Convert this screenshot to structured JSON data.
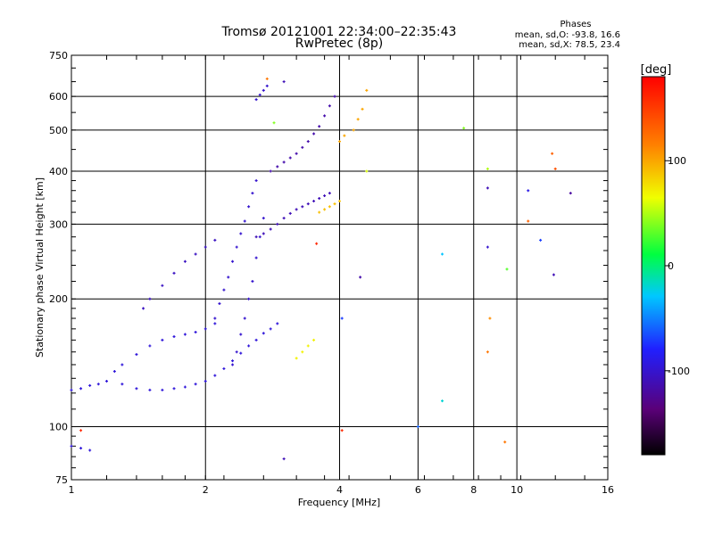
{
  "chart_data": {
    "type": "scatter",
    "title": "Tromsø 20121001 22:34:00–22:35:43",
    "subtitle": "RwPretec (8p)",
    "phases": {
      "title": "Phases",
      "line_o": "mean, sd,O: -93.8, 16.6",
      "line_x": "mean, sd,X:  78.5, 23.4"
    },
    "xlabel": "Frequency [MHz]",
    "ylabel": "Stationary phase Virtual Height [km]",
    "x_scale": "log",
    "y_scale": "log",
    "xlim": [
      1,
      16
    ],
    "ylim": [
      75,
      750
    ],
    "xticks": [
      1,
      2,
      4,
      6,
      8,
      10,
      16
    ],
    "yticks": [
      75,
      100,
      200,
      300,
      400,
      500,
      600,
      750
    ],
    "x_grid": [
      2,
      4,
      6,
      8,
      10
    ],
    "y_grid": [
      100,
      200,
      300,
      400,
      500,
      600
    ],
    "grid": true,
    "colorbar": {
      "unit": "[deg]",
      "range": [
        -180,
        180
      ],
      "ticks": [
        100,
        0,
        -100
      ],
      "colormap": "rainbow"
    },
    "traces": [
      {
        "name": "",
        "phase": -95,
        "x": [
          1.0,
          1.05,
          1.1,
          1.15,
          1.2,
          1.3,
          1.4,
          1.5,
          1.6,
          1.7,
          1.8,
          1.9,
          2.0,
          2.1,
          2.2,
          2.3,
          2.4,
          2.5,
          2.6,
          2.7,
          2.8,
          2.9
        ],
        "y": [
          122,
          123,
          125,
          126,
          128,
          126,
          123,
          122,
          122,
          123,
          124,
          126,
          128,
          132,
          137,
          143,
          149,
          155,
          160,
          166,
          170,
          175
        ]
      },
      {
        "name": "",
        "phase": -100,
        "x": [
          2.1,
          2.15,
          2.2,
          2.25,
          2.3,
          2.35,
          2.4,
          2.45,
          2.5,
          2.55,
          2.6
        ],
        "y": [
          180,
          195,
          210,
          225,
          245,
          265,
          285,
          305,
          330,
          355,
          380
        ]
      },
      {
        "name": "",
        "phase": -100,
        "x": [
          2.3,
          2.35,
          2.4,
          2.45,
          2.5,
          2.55,
          2.6,
          2.65,
          2.7
        ],
        "y": [
          140,
          150,
          165,
          180,
          200,
          220,
          250,
          280,
          310
        ]
      },
      {
        "name": "",
        "phase": -105,
        "x": [
          1.45,
          1.5,
          1.6,
          1.7,
          1.8,
          1.9,
          2.0,
          2.1
        ],
        "y": [
          190,
          200,
          215,
          230,
          245,
          255,
          265,
          275
        ]
      },
      {
        "name": "",
        "phase": -95,
        "x": [
          1.25,
          1.3,
          1.4,
          1.5,
          1.6,
          1.7,
          1.8,
          1.9,
          2.0,
          2.1
        ],
        "y": [
          135,
          140,
          148,
          155,
          160,
          163,
          165,
          167,
          170,
          175
        ]
      },
      {
        "name": "",
        "phase": -110,
        "x": [
          2.6,
          2.7,
          2.8,
          2.9,
          3.0,
          3.1,
          3.2,
          3.3,
          3.4,
          3.5,
          3.6,
          3.7,
          3.8
        ],
        "y": [
          280,
          285,
          292,
          300,
          310,
          318,
          325,
          330,
          335,
          340,
          345,
          350,
          355
        ]
      },
      {
        "name": "",
        "phase": -115,
        "x": [
          2.8,
          2.9,
          3.0,
          3.1,
          3.2,
          3.3,
          3.4,
          3.5,
          3.6,
          3.7,
          3.8,
          3.9
        ],
        "y": [
          400,
          410,
          420,
          430,
          440,
          455,
          470,
          490,
          510,
          540,
          570,
          600
        ]
      },
      {
        "name": "",
        "phase": -100,
        "x": [
          2.6,
          2.65,
          2.7,
          2.75
        ],
        "y": [
          590,
          605,
          620,
          635
        ]
      },
      {
        "name": "",
        "phase": -95,
        "x": [
          1.0,
          1.05,
          1.1
        ],
        "y": [
          90,
          89,
          88
        ]
      },
      {
        "name": "",
        "phase": 70,
        "x": [
          3.2,
          3.3,
          3.4,
          3.5
        ],
        "y": [
          145,
          150,
          155,
          160
        ]
      },
      {
        "name": "",
        "phase": 90,
        "x": [
          3.6,
          3.7,
          3.8,
          3.9,
          4.0
        ],
        "y": [
          320,
          325,
          330,
          335,
          340
        ]
      },
      {
        "name": "",
        "phase": 100,
        "x": [
          4.0,
          4.1,
          4.3,
          4.4,
          4.5
        ],
        "y": [
          470,
          485,
          500,
          530,
          560
        ]
      }
    ],
    "points": [
      {
        "x": 2.75,
        "y": 660,
        "phase": 120
      },
      {
        "x": 3.0,
        "y": 650,
        "phase": -110
      },
      {
        "x": 2.85,
        "y": 520,
        "phase": 40
      },
      {
        "x": 3.55,
        "y": 270,
        "phase": 160
      },
      {
        "x": 4.45,
        "y": 225,
        "phase": -115
      },
      {
        "x": 4.05,
        "y": 180,
        "phase": -70
      },
      {
        "x": 4.05,
        "y": 98,
        "phase": 160
      },
      {
        "x": 3.0,
        "y": 84,
        "phase": -110
      },
      {
        "x": 1.05,
        "y": 98,
        "phase": 160
      },
      {
        "x": 4.6,
        "y": 400,
        "phase": 60
      },
      {
        "x": 4.6,
        "y": 620,
        "phase": 100
      },
      {
        "x": 6.0,
        "y": 100,
        "phase": -60
      },
      {
        "x": 6.8,
        "y": 255,
        "phase": -30
      },
      {
        "x": 6.8,
        "y": 115,
        "phase": -20
      },
      {
        "x": 7.6,
        "y": 505,
        "phase": 40
      },
      {
        "x": 8.6,
        "y": 405,
        "phase": 50
      },
      {
        "x": 8.6,
        "y": 365,
        "phase": -110
      },
      {
        "x": 8.6,
        "y": 265,
        "phase": -100
      },
      {
        "x": 8.7,
        "y": 180,
        "phase": 110
      },
      {
        "x": 8.6,
        "y": 150,
        "phase": 120
      },
      {
        "x": 9.4,
        "y": 92,
        "phase": 120
      },
      {
        "x": 9.5,
        "y": 235,
        "phase": 30
      },
      {
        "x": 10.6,
        "y": 360,
        "phase": -90
      },
      {
        "x": 10.6,
        "y": 305,
        "phase": 130
      },
      {
        "x": 11.3,
        "y": 275,
        "phase": -70
      },
      {
        "x": 12.0,
        "y": 440,
        "phase": 130
      },
      {
        "x": 12.2,
        "y": 405,
        "phase": 140
      },
      {
        "x": 12.1,
        "y": 228,
        "phase": -110
      },
      {
        "x": 13.2,
        "y": 355,
        "phase": -120
      }
    ]
  }
}
